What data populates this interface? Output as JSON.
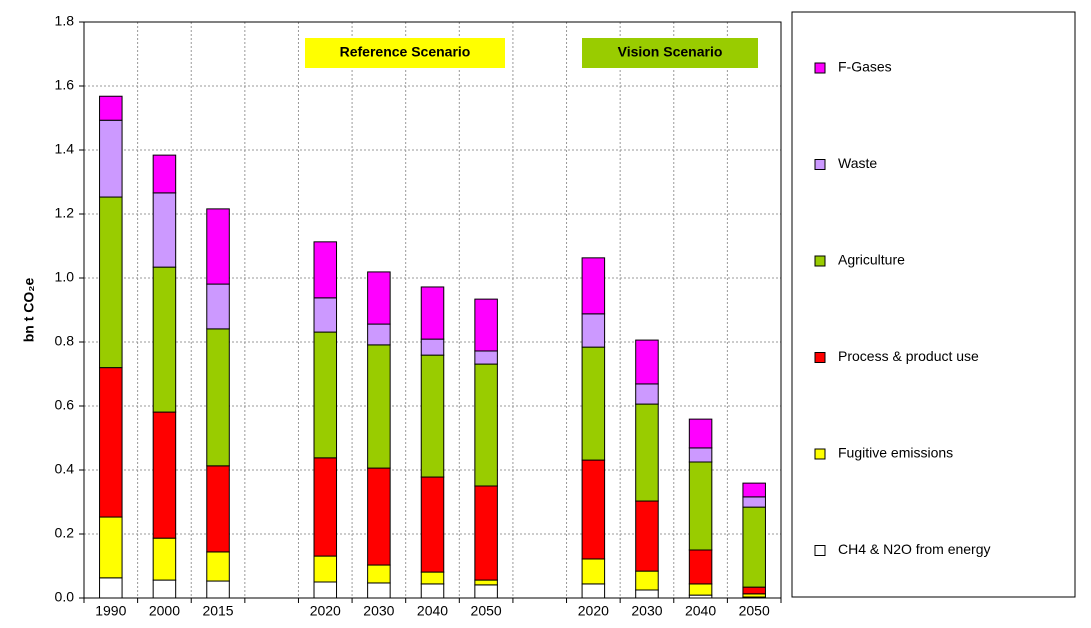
{
  "chart_data": {
    "type": "stacked-bar",
    "y_label": "bn t CO₂e",
    "categories": [
      "1990",
      "2000",
      "2015",
      null,
      "2020",
      "2030",
      "2040",
      "2050",
      null,
      "2020",
      "2030",
      "2040",
      "2050"
    ],
    "series": [
      {
        "name": "CH4 & N2O from energy",
        "color": "#ffffff",
        "values": [
          0.063,
          0.056,
          0.053,
          null,
          0.05,
          0.047,
          0.044,
          0.041,
          null,
          0.044,
          0.025,
          0.009,
          0.003
        ]
      },
      {
        "name": "Fugitive emissions",
        "color": "#ffff00",
        "values": [
          0.19,
          0.131,
          0.091,
          null,
          0.081,
          0.056,
          0.037,
          0.015,
          null,
          0.078,
          0.059,
          0.035,
          0.01
        ]
      },
      {
        "name": "Process & product use",
        "color": "#ff0000",
        "values": [
          0.467,
          0.394,
          0.269,
          null,
          0.307,
          0.303,
          0.297,
          0.294,
          null,
          0.309,
          0.219,
          0.106,
          0.021
        ]
      },
      {
        "name": "Agriculture",
        "color": "#99cc00",
        "values": [
          0.533,
          0.453,
          0.428,
          null,
          0.393,
          0.385,
          0.381,
          0.381,
          null,
          0.353,
          0.303,
          0.275,
          0.25
        ]
      },
      {
        "name": "Waste",
        "color": "#cc99ff",
        "values": [
          0.24,
          0.232,
          0.14,
          null,
          0.107,
          0.065,
          0.05,
          0.041,
          null,
          0.104,
          0.063,
          0.044,
          0.032
        ]
      },
      {
        "name": "F-Gases",
        "color": "#ff00ff",
        "values": [
          0.075,
          0.118,
          0.235,
          null,
          0.175,
          0.163,
          0.163,
          0.162,
          null,
          0.175,
          0.137,
          0.09,
          0.043
        ]
      }
    ],
    "annotations": [
      {
        "text": "Reference Scenario",
        "color": "#ffff00"
      },
      {
        "text": "Vision  Scenario",
        "color": "#99cc00"
      }
    ],
    "ylim": [
      0,
      1.8
    ],
    "yticks": [
      {
        "value": 0,
        "label": "0.0"
      },
      {
        "value": 0.2,
        "label": "0.2"
      },
      {
        "value": 0.4,
        "label": "0.4"
      },
      {
        "value": 0.6,
        "label": "0.6"
      },
      {
        "value": 0.8,
        "label": "0.8"
      },
      {
        "value": 1.0,
        "label": "1.0"
      },
      {
        "value": 1.2,
        "label": "1.2"
      },
      {
        "value": 1.4,
        "label": "1.4"
      },
      {
        "value": 1.6,
        "label": "1.6"
      },
      {
        "value": 1.8,
        "label": "1.8"
      }
    ],
    "grid": true,
    "legend_position": "right"
  }
}
